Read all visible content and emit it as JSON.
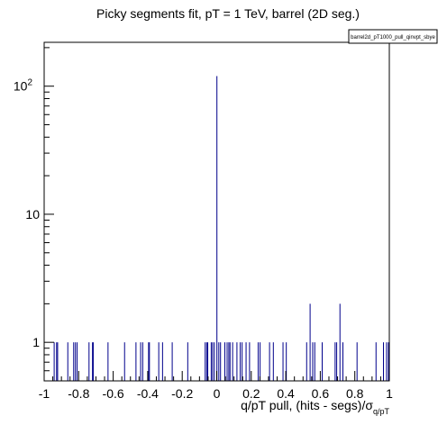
{
  "chart_data": {
    "type": "bar",
    "title": "Picky segments fit, pT = 1 TeV, barrel (2D seg.)",
    "xlabel": "q/pT pull, (hits - segs)/σ",
    "xlabel_subscript": "q/pT",
    "ylabel": "",
    "legend_entry": "barrel2d_pT1000_pull_qinvpt_sbye",
    "legend_placement": "top-right",
    "xlim": [
      -1,
      1
    ],
    "ylim": [
      0.5,
      220
    ],
    "yscale": "log",
    "grid": false,
    "series_color": "#00008b",
    "x_ticks": [
      {
        "value": -1,
        "label": "-1"
      },
      {
        "value": -0.8,
        "label": "-0.8"
      },
      {
        "value": -0.6,
        "label": "-0.6"
      },
      {
        "value": -0.4,
        "label": "-0.4"
      },
      {
        "value": -0.2,
        "label": "-0.2"
      },
      {
        "value": 0,
        "label": "0"
      },
      {
        "value": 0.2,
        "label": "0.2"
      },
      {
        "value": 0.4,
        "label": "0.4"
      },
      {
        "value": 0.6,
        "label": "0.6"
      },
      {
        "value": 0.8,
        "label": "0.8"
      },
      {
        "value": 1,
        "label": "1"
      }
    ],
    "y_ticks": [
      {
        "value": 1,
        "label": "1"
      },
      {
        "value": 10,
        "label": "10"
      },
      {
        "value": 100,
        "label": "10",
        "exponent": "2"
      }
    ],
    "bars": [
      {
        "x": -0.942,
        "y": 1
      },
      {
        "x": -0.928,
        "y": 1
      },
      {
        "x": -0.922,
        "y": 1
      },
      {
        "x": -0.863,
        "y": 1
      },
      {
        "x": -0.829,
        "y": 1
      },
      {
        "x": -0.819,
        "y": 1
      },
      {
        "x": -0.809,
        "y": 1
      },
      {
        "x": -0.74,
        "y": 1
      },
      {
        "x": -0.72,
        "y": 1
      },
      {
        "x": -0.715,
        "y": 1
      },
      {
        "x": -0.63,
        "y": 1
      },
      {
        "x": -0.534,
        "y": 1
      },
      {
        "x": -0.468,
        "y": 1
      },
      {
        "x": -0.441,
        "y": 1
      },
      {
        "x": -0.429,
        "y": 1
      },
      {
        "x": -0.395,
        "y": 1
      },
      {
        "x": -0.39,
        "y": 1
      },
      {
        "x": -0.336,
        "y": 1
      },
      {
        "x": -0.314,
        "y": 1
      },
      {
        "x": -0.258,
        "y": 1
      },
      {
        "x": -0.168,
        "y": 1
      },
      {
        "x": -0.067,
        "y": 1
      },
      {
        "x": -0.058,
        "y": 1
      },
      {
        "x": -0.052,
        "y": 1
      },
      {
        "x": -0.032,
        "y": 1
      },
      {
        "x": -0.024,
        "y": 1
      },
      {
        "x": -0.014,
        "y": 1
      },
      {
        "x": 0.001,
        "y": 120
      },
      {
        "x": 0.012,
        "y": 1
      },
      {
        "x": 0.022,
        "y": 1
      },
      {
        "x": 0.047,
        "y": 1
      },
      {
        "x": 0.06,
        "y": 1
      },
      {
        "x": 0.07,
        "y": 1
      },
      {
        "x": 0.077,
        "y": 1
      },
      {
        "x": 0.092,
        "y": 1
      },
      {
        "x": 0.117,
        "y": 1
      },
      {
        "x": 0.136,
        "y": 1
      },
      {
        "x": 0.147,
        "y": 1
      },
      {
        "x": 0.17,
        "y": 1
      },
      {
        "x": 0.19,
        "y": 1
      },
      {
        "x": 0.24,
        "y": 1
      },
      {
        "x": 0.251,
        "y": 1
      },
      {
        "x": 0.306,
        "y": 1
      },
      {
        "x": 0.328,
        "y": 1
      },
      {
        "x": 0.384,
        "y": 1
      },
      {
        "x": 0.403,
        "y": 1
      },
      {
        "x": 0.521,
        "y": 1
      },
      {
        "x": 0.541,
        "y": 2
      },
      {
        "x": 0.556,
        "y": 1
      },
      {
        "x": 0.568,
        "y": 1
      },
      {
        "x": 0.611,
        "y": 1
      },
      {
        "x": 0.686,
        "y": 1
      },
      {
        "x": 0.695,
        "y": 1
      },
      {
        "x": 0.714,
        "y": 2
      },
      {
        "x": 0.731,
        "y": 1
      },
      {
        "x": 0.813,
        "y": 1
      },
      {
        "x": 0.923,
        "y": 1
      },
      {
        "x": 0.966,
        "y": 1
      },
      {
        "x": 0.984,
        "y": 1
      },
      {
        "x": 0.995,
        "y": 1
      }
    ]
  }
}
